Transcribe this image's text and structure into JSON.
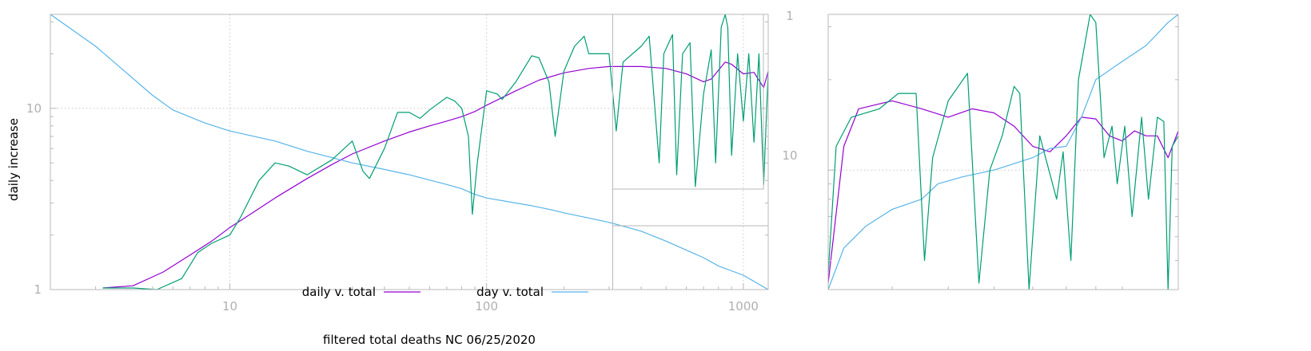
{
  "chart_data": [
    {
      "type": "line",
      "title": "",
      "xlabel": "filtered total deaths NC 06/25/2020",
      "ylabel": "daily increase",
      "xscale": "log",
      "yscale": "log",
      "xlim": [
        2,
        1250
      ],
      "ylim": [
        1,
        33
      ],
      "x_ticks": [
        10,
        100,
        1000
      ],
      "x_tick_labels": [
        "10",
        "100",
        "1000"
      ],
      "y_ticks": [
        1,
        10
      ],
      "y_tick_labels": [
        "1",
        "10"
      ],
      "grid": true,
      "legend_position": "bottom-center",
      "series": [
        {
          "name": "daily v. total",
          "color": "#9400d3",
          "points": [
            [
              3.2,
              1.02
            ],
            [
              4.2,
              1.05
            ],
            [
              5.5,
              1.25
            ],
            [
              7,
              1.55
            ],
            [
              8.5,
              1.85
            ],
            [
              10,
              2.2
            ],
            [
              12,
              2.6
            ],
            [
              15,
              3.2
            ],
            [
              20,
              4.1
            ],
            [
              25,
              4.9
            ],
            [
              30,
              5.6
            ],
            [
              40,
              6.6
            ],
            [
              50,
              7.4
            ],
            [
              60,
              8.0
            ],
            [
              70,
              8.5
            ],
            [
              80,
              9.0
            ],
            [
              90,
              9.6
            ],
            [
              100,
              10.4
            ],
            [
              130,
              12.5
            ],
            [
              160,
              14.3
            ],
            [
              200,
              15.7
            ],
            [
              250,
              16.6
            ],
            [
              300,
              17.0
            ],
            [
              400,
              17.0
            ],
            [
              500,
              16.6
            ],
            [
              600,
              15.5
            ],
            [
              700,
              14.0
            ],
            [
              750,
              14.5
            ],
            [
              850,
              18.0
            ],
            [
              900,
              17.5
            ],
            [
              1000,
              15.5
            ],
            [
              1100,
              15.8
            ],
            [
              1200,
              13.0
            ],
            [
              1250,
              16.0
            ]
          ]
        },
        {
          "name": "day v. total",
          "color": "#56b4e9",
          "points": [
            [
              2,
              33
            ],
            [
              3,
              22
            ],
            [
              4,
              15.5
            ],
            [
              5,
              11.8
            ],
            [
              6,
              9.8
            ],
            [
              8,
              8.3
            ],
            [
              10,
              7.5
            ],
            [
              15,
              6.6
            ],
            [
              20,
              5.8
            ],
            [
              30,
              5.0
            ],
            [
              40,
              4.6
            ],
            [
              50,
              4.3
            ],
            [
              70,
              3.8
            ],
            [
              80,
              3.6
            ],
            [
              90,
              3.35
            ],
            [
              100,
              3.2
            ],
            [
              150,
              2.9
            ],
            [
              180,
              2.75
            ],
            [
              200,
              2.65
            ],
            [
              300,
              2.35
            ],
            [
              400,
              2.1
            ],
            [
              500,
              1.85
            ],
            [
              600,
              1.65
            ],
            [
              700,
              1.5
            ],
            [
              800,
              1.35
            ],
            [
              1000,
              1.2
            ],
            [
              1250,
              1.0
            ]
          ]
        },
        {
          "name": "",
          "color": "#009e73",
          "points": [
            [
              3.2,
              1.02
            ],
            [
              4.2,
              1.02
            ],
            [
              5.2,
              1.0
            ],
            [
              6.5,
              1.15
            ],
            [
              7.5,
              1.6
            ],
            [
              8.5,
              1.8
            ],
            [
              10,
              2.0
            ],
            [
              11,
              2.5
            ],
            [
              13,
              4.0
            ],
            [
              15,
              5.0
            ],
            [
              17,
              4.8
            ],
            [
              20,
              4.3
            ],
            [
              25,
              5.2
            ],
            [
              30,
              6.6
            ],
            [
              33,
              4.5
            ],
            [
              35,
              4.1
            ],
            [
              40,
              6.0
            ],
            [
              45,
              9.5
            ],
            [
              50,
              9.5
            ],
            [
              55,
              8.8
            ],
            [
              60,
              9.8
            ],
            [
              70,
              11.5
            ],
            [
              75,
              11.0
            ],
            [
              80,
              10.0
            ],
            [
              85,
              7.0
            ],
            [
              88,
              2.6
            ],
            [
              92,
              5.0
            ],
            [
              100,
              12.5
            ],
            [
              110,
              12.0
            ],
            [
              115,
              11.2
            ],
            [
              130,
              14.0
            ],
            [
              150,
              19.5
            ],
            [
              160,
              19.0
            ],
            [
              175,
              14.0
            ],
            [
              185,
              7.0
            ],
            [
              200,
              16.0
            ],
            [
              220,
              22.0
            ],
            [
              240,
              25.0
            ],
            [
              250,
              20.0
            ],
            [
              280,
              20.0
            ],
            [
              300,
              20.0
            ],
            [
              320,
              7.5
            ],
            [
              340,
              18.0
            ],
            [
              400,
              22.0
            ],
            [
              430,
              25.0
            ],
            [
              470,
              5.0
            ],
            [
              490,
              20.0
            ],
            [
              530,
              25.5
            ],
            [
              550,
              4.3
            ],
            [
              580,
              20.0
            ],
            [
              620,
              23.0
            ],
            [
              650,
              3.7
            ],
            [
              700,
              12.0
            ],
            [
              750,
              21.0
            ],
            [
              780,
              5.0
            ],
            [
              820,
              28.0
            ],
            [
              850,
              33.0
            ],
            [
              870,
              28.0
            ],
            [
              900,
              5.5
            ],
            [
              950,
              20.0
            ],
            [
              1000,
              8.5
            ],
            [
              1050,
              20.0
            ],
            [
              1100,
              6.5
            ],
            [
              1150,
              20.0
            ],
            [
              1200,
              3.8
            ],
            [
              1250,
              16.0
            ]
          ]
        }
      ]
    },
    {
      "type": "line",
      "title": "",
      "xlabel": "",
      "ylabel": "",
      "xscale": "log",
      "yscale": "log",
      "xlim": [
        310,
        1250
      ],
      "ylim": [
        4,
        33
      ],
      "x_ticks": [],
      "y_ticks": [
        10
      ],
      "y_tick_labels": [
        "10"
      ],
      "grid": true,
      "series": [
        {
          "name": "daily v. total",
          "color": "#9400d3",
          "points": [
            [
              310,
              4.2
            ],
            [
              330,
              12.0
            ],
            [
              350,
              16.0
            ],
            [
              400,
              17.0
            ],
            [
              450,
              16.0
            ],
            [
              500,
              15.0
            ],
            [
              550,
              16.0
            ],
            [
              600,
              15.5
            ],
            [
              650,
              14.0
            ],
            [
              700,
              12.0
            ],
            [
              750,
              11.5
            ],
            [
              800,
              13.0
            ],
            [
              850,
              15.0
            ],
            [
              900,
              14.8
            ],
            [
              950,
              13.0
            ],
            [
              1000,
              12.5
            ],
            [
              1050,
              13.5
            ],
            [
              1100,
              13.0
            ],
            [
              1150,
              13.0
            ],
            [
              1200,
              11.0
            ],
            [
              1250,
              13.5
            ]
          ]
        },
        {
          "name": "day v. total",
          "color": "#56b4e9",
          "points": [
            [
              310,
              4.0
            ],
            [
              330,
              5.5
            ],
            [
              360,
              6.5
            ],
            [
              400,
              7.4
            ],
            [
              450,
              8.0
            ],
            [
              480,
              9.0
            ],
            [
              530,
              9.5
            ],
            [
              600,
              10.0
            ],
            [
              700,
              11.0
            ],
            [
              750,
              11.8
            ],
            [
              800,
              12.0
            ],
            [
              850,
              15.0
            ],
            [
              900,
              20.0
            ],
            [
              1000,
              23.0
            ],
            [
              1100,
              26.0
            ],
            [
              1200,
              31.0
            ],
            [
              1250,
              33.0
            ]
          ]
        },
        {
          "name": "",
          "color": "#009e73",
          "points": [
            [
              310,
              4.5
            ],
            [
              320,
              12.0
            ],
            [
              340,
              15.0
            ],
            [
              380,
              16.0
            ],
            [
              410,
              18.0
            ],
            [
              440,
              18.0
            ],
            [
              455,
              5.0
            ],
            [
              470,
              11.0
            ],
            [
              500,
              17.0
            ],
            [
              540,
              21.0
            ],
            [
              565,
              4.2
            ],
            [
              590,
              10.0
            ],
            [
              620,
              13.0
            ],
            [
              650,
              19.0
            ],
            [
              665,
              18.0
            ],
            [
              690,
              4.0
            ],
            [
              720,
              13.0
            ],
            [
              770,
              8.0
            ],
            [
              790,
              11.5
            ],
            [
              815,
              5.0
            ],
            [
              840,
              20.0
            ],
            [
              880,
              33.0
            ],
            [
              900,
              31.0
            ],
            [
              930,
              11.0
            ],
            [
              960,
              14.0
            ],
            [
              980,
              9.0
            ],
            [
              1010,
              14.0
            ],
            [
              1040,
              7.0
            ],
            [
              1080,
              15.0
            ],
            [
              1110,
              8.0
            ],
            [
              1150,
              15.0
            ],
            [
              1180,
              14.5
            ],
            [
              1200,
              4.0
            ],
            [
              1220,
              12.0
            ],
            [
              1250,
              13.0
            ]
          ]
        }
      ]
    }
  ]
}
